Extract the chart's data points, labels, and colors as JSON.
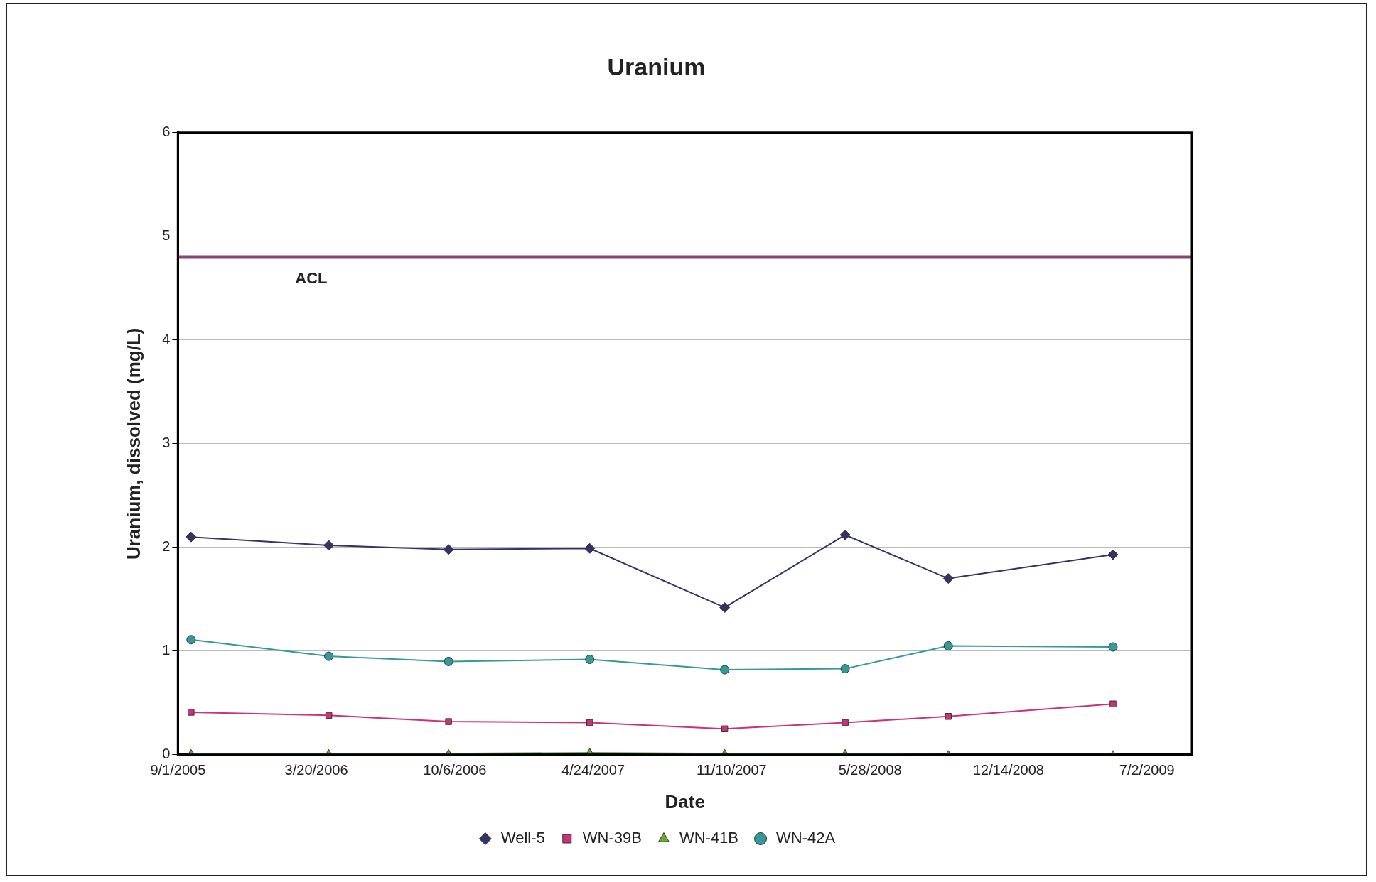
{
  "chart_data": {
    "type": "line",
    "title": "Uranium",
    "xlabel": "Date",
    "ylabel": "Uranium, dissolved (mg/L)",
    "xlim": [
      "2005-09-01",
      "2009-09-05"
    ],
    "xticks": [
      {
        "value": "2005-09-01",
        "label": "9/1/2005"
      },
      {
        "value": "2006-03-20",
        "label": "3/20/2006"
      },
      {
        "value": "2006-10-06",
        "label": "10/6/2006"
      },
      {
        "value": "2007-04-24",
        "label": "4/24/2007"
      },
      {
        "value": "2007-11-10",
        "label": "11/10/2007"
      },
      {
        "value": "2008-05-28",
        "label": "5/28/2008"
      },
      {
        "value": "2008-12-14",
        "label": "12/14/2008"
      },
      {
        "value": "2009-07-02",
        "label": "7/2/2009"
      }
    ],
    "ylim": [
      0,
      6
    ],
    "yticks": [
      0,
      1,
      2,
      3,
      4,
      5,
      6
    ],
    "grid": "y",
    "legend": "bottom",
    "x": [
      "2005-09-20",
      "2006-04-07",
      "2006-09-27",
      "2007-04-19",
      "2007-10-31",
      "2008-04-22",
      "2008-09-18",
      "2009-05-14"
    ],
    "series": [
      {
        "name": "Well-5",
        "color": "#333366",
        "marker": "diamond",
        "values": [
          2.1,
          2.02,
          1.98,
          1.99,
          1.42,
          2.12,
          1.7,
          1.93
        ]
      },
      {
        "name": "WN-39B",
        "color": "#cc3377",
        "marker": "square",
        "values": [
          0.41,
          0.38,
          0.32,
          0.31,
          0.25,
          0.31,
          0.37,
          0.49
        ]
      },
      {
        "name": "WN-41B",
        "color": "#66aa33",
        "marker": "triangle",
        "values": [
          0.01,
          0.01,
          0.01,
          0.02,
          0.01,
          0.01,
          0.0,
          0.0
        ]
      },
      {
        "name": "WN-42A",
        "color": "#339999",
        "marker": "circle",
        "values": [
          1.11,
          0.95,
          0.9,
          0.92,
          0.82,
          0.83,
          1.05,
          1.04
        ]
      }
    ],
    "ref_lines": [
      {
        "axis": "y",
        "value": 4.8,
        "label": "ACL",
        "color": "#884477"
      }
    ]
  }
}
